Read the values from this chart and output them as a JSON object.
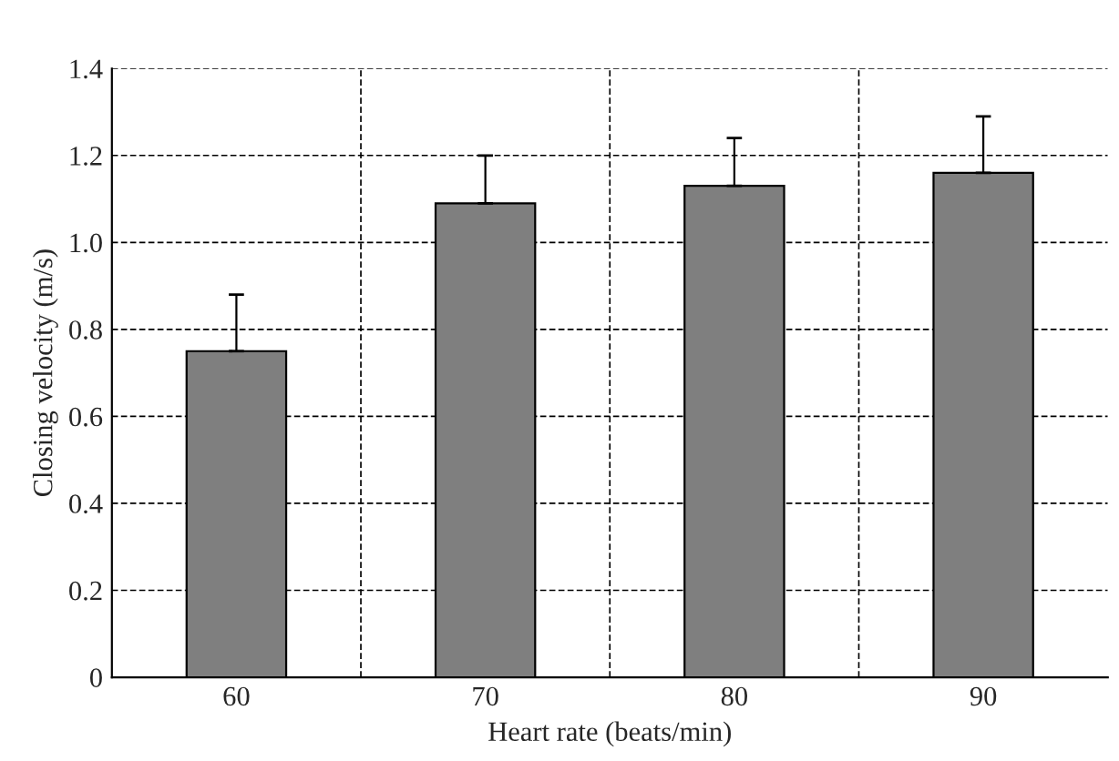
{
  "chart_data": {
    "type": "bar",
    "xlabel": "Heart rate (beats/min)",
    "ylabel": "Closing velocity (m/s)",
    "categories": [
      "60",
      "70",
      "80",
      "90"
    ],
    "values": [
      0.75,
      1.09,
      1.13,
      1.16
    ],
    "errors": [
      [
        0.75,
        0.88
      ],
      [
        1.09,
        1.2
      ],
      [
        1.13,
        1.24
      ],
      [
        1.16,
        1.29
      ]
    ],
    "color": "#7f7f7f",
    "ylim": [
      0,
      1.4
    ],
    "yticks": [
      0,
      0.2,
      0.4,
      0.6,
      0.8,
      {
        "value": 1.0,
        "label": "1.0"
      },
      1.2,
      1.4
    ],
    "grid": true,
    "line_style": "dashed"
  }
}
